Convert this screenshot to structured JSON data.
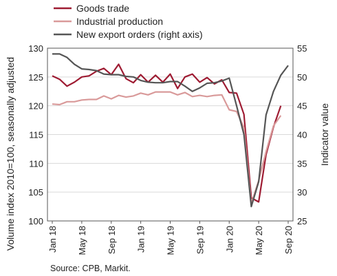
{
  "chart_data": {
    "type": "line",
    "legend_placement": "top-left",
    "grid": true,
    "source": "Source: CPB, Markit.",
    "ylabel_left": "Volume index 2010=100, seasonally adjusted",
    "ylabel_right": "Indicator value",
    "ylim_left": [
      100,
      130
    ],
    "ylim_right": [
      25,
      55
    ],
    "yticks_left": [
      "100",
      "105",
      "110",
      "115",
      "120",
      "125",
      "130"
    ],
    "yticks_right": [
      "25",
      "30",
      "35",
      "40",
      "45",
      "50",
      "55"
    ],
    "x_tick_labels": [
      "Jan 18",
      "May 18",
      "Sep 18",
      "Jan 19",
      "May 19",
      "Sep 19",
      "Jan 20",
      "May 20",
      "Sep 20"
    ],
    "x_tick_months": [
      "2018-01",
      "2018-05",
      "2018-09",
      "2019-01",
      "2019-05",
      "2019-09",
      "2020-01",
      "2020-05",
      "2020-09"
    ],
    "x_tick_positions": [
      0,
      4,
      8,
      12,
      16,
      20,
      24,
      28,
      32
    ],
    "x_range": [
      0,
      32
    ],
    "series": [
      {
        "name": "Goods trade",
        "axis": "left",
        "color": "#9e1b32",
        "x": [
          0,
          1,
          2,
          3,
          4,
          5,
          6,
          7,
          8,
          9,
          10,
          11,
          12,
          13,
          14,
          15,
          16,
          17,
          18,
          19,
          20,
          21,
          22,
          23,
          24,
          25,
          26,
          27,
          28,
          29,
          30,
          31
        ],
        "values": [
          125.2,
          124.6,
          123.4,
          124.1,
          125.0,
          125.2,
          126.0,
          126.5,
          125.4,
          127.2,
          124.7,
          124.0,
          125.4,
          124.1,
          125.3,
          124.1,
          125.5,
          123.0,
          125.0,
          125.5,
          124.1,
          124.9,
          123.8,
          124.5,
          122.3,
          122.2,
          118.5,
          104.0,
          103.3,
          111.5,
          116.3,
          120.0
        ]
      },
      {
        "name": "Industrial production",
        "axis": "left",
        "color": "#d99a9a",
        "x": [
          0,
          1,
          2,
          3,
          4,
          5,
          6,
          7,
          8,
          9,
          10,
          11,
          12,
          13,
          14,
          15,
          16,
          17,
          18,
          19,
          20,
          21,
          22,
          23,
          24,
          25,
          26,
          27,
          28,
          29,
          30,
          31
        ],
        "values": [
          120.3,
          120.2,
          120.7,
          120.7,
          121.0,
          121.1,
          121.1,
          121.7,
          121.2,
          121.8,
          121.5,
          121.7,
          122.2,
          121.9,
          122.4,
          122.4,
          122.4,
          121.9,
          122.3,
          121.6,
          121.8,
          121.6,
          121.8,
          121.9,
          119.3,
          119.0,
          116.2,
          103.0,
          107.0,
          112.0,
          116.5,
          118.3
        ]
      },
      {
        "name": "New export orders (right axis)",
        "axis": "right",
        "color": "#555555",
        "x": [
          0,
          1,
          2,
          3,
          4,
          5,
          6,
          7,
          8,
          9,
          10,
          11,
          12,
          13,
          14,
          15,
          16,
          17,
          18,
          19,
          20,
          21,
          22,
          23,
          24,
          25,
          26,
          27,
          28,
          29,
          30,
          31,
          32
        ],
        "values": [
          54.0,
          54.0,
          53.4,
          52.2,
          51.4,
          51.3,
          51.1,
          50.5,
          50.4,
          50.4,
          50.1,
          50.0,
          49.4,
          49.1,
          49.0,
          49.0,
          49.2,
          49.2,
          48.4,
          47.5,
          48.1,
          48.9,
          49.0,
          49.3,
          49.8,
          45.0,
          40.0,
          27.5,
          31.8,
          43.4,
          47.5,
          50.3,
          52.0
        ]
      }
    ]
  }
}
